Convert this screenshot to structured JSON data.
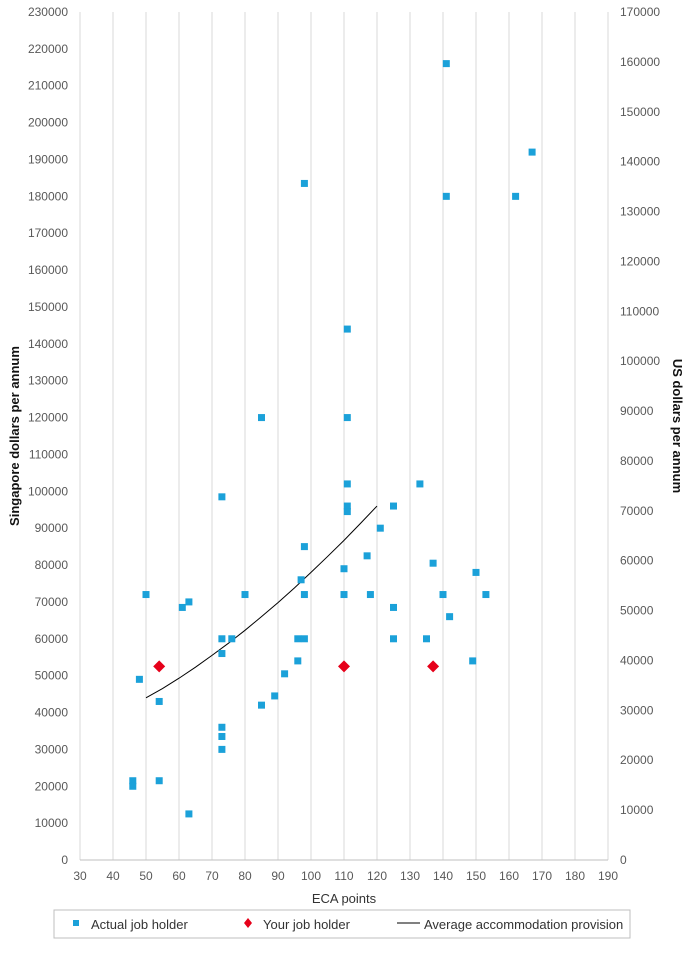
{
  "chart_data": {
    "type": "scatter",
    "xlabel": "ECA points",
    "ylabel": "Singapore dollars per annum",
    "y2label": "US dollars per annum",
    "xlim": [
      30,
      190
    ],
    "ylim": [
      0,
      230000
    ],
    "y2lim": [
      0,
      170000
    ],
    "x_ticks": [
      30,
      40,
      50,
      60,
      70,
      80,
      90,
      100,
      110,
      120,
      130,
      140,
      150,
      160,
      170,
      180,
      190
    ],
    "y_ticks": [
      0,
      10000,
      20000,
      30000,
      40000,
      50000,
      60000,
      70000,
      80000,
      90000,
      100000,
      110000,
      120000,
      130000,
      140000,
      150000,
      160000,
      170000,
      180000,
      190000,
      200000,
      210000,
      220000,
      230000
    ],
    "y2_ticks": [
      0,
      10000,
      20000,
      30000,
      40000,
      50000,
      60000,
      70000,
      80000,
      90000,
      100000,
      110000,
      120000,
      130000,
      140000,
      150000,
      160000,
      170000
    ],
    "grid": "vertical",
    "legend_position": "bottom",
    "series": [
      {
        "name": "Actual job holder",
        "kind": "scatter",
        "marker": "square",
        "color": "#1ba1d9",
        "points": [
          [
            46,
            21500
          ],
          [
            46,
            20000
          ],
          [
            48,
            49000
          ],
          [
            50,
            72000
          ],
          [
            54,
            43000
          ],
          [
            54,
            21500
          ],
          [
            61,
            68500
          ],
          [
            63,
            70000
          ],
          [
            63,
            12500
          ],
          [
            73,
            98500
          ],
          [
            73,
            60000
          ],
          [
            73,
            56000
          ],
          [
            73,
            36000
          ],
          [
            73,
            33500
          ],
          [
            73,
            30000
          ],
          [
            76,
            60000
          ],
          [
            80,
            72000
          ],
          [
            85,
            120000
          ],
          [
            85,
            42000
          ],
          [
            89,
            44500
          ],
          [
            92,
            50500
          ],
          [
            96,
            54000
          ],
          [
            96,
            60000
          ],
          [
            97,
            76000
          ],
          [
            98,
            60000
          ],
          [
            98,
            72000
          ],
          [
            98,
            85000
          ],
          [
            98,
            183500
          ],
          [
            110,
            79000
          ],
          [
            110,
            72000
          ],
          [
            111,
            144000
          ],
          [
            111,
            120000
          ],
          [
            111,
            102000
          ],
          [
            111,
            96000
          ],
          [
            111,
            94500
          ],
          [
            117,
            82500
          ],
          [
            118,
            72000
          ],
          [
            121,
            90000
          ],
          [
            125,
            96000
          ],
          [
            125,
            68500
          ],
          [
            125,
            60000
          ],
          [
            133,
            102000
          ],
          [
            135,
            60000
          ],
          [
            137,
            80500
          ],
          [
            140,
            72000
          ],
          [
            141,
            216000
          ],
          [
            141,
            180000
          ],
          [
            142,
            66000
          ],
          [
            149,
            54000
          ],
          [
            150,
            78000
          ],
          [
            153,
            72000
          ],
          [
            162,
            180000
          ],
          [
            167,
            192000
          ]
        ]
      },
      {
        "name": "Your job holder",
        "kind": "scatter",
        "marker": "diamond",
        "color": "#e6001a",
        "points": [
          [
            54,
            52500
          ],
          [
            110,
            52500
          ],
          [
            137,
            52500
          ]
        ]
      },
      {
        "name": "Average accommodation provision",
        "kind": "line",
        "color": "#000000",
        "points": [
          [
            50,
            44000
          ],
          [
            55,
            46500
          ],
          [
            60,
            49300
          ],
          [
            65,
            52300
          ],
          [
            70,
            55500
          ],
          [
            75,
            58800
          ],
          [
            80,
            62300
          ],
          [
            85,
            66000
          ],
          [
            90,
            69800
          ],
          [
            95,
            73800
          ],
          [
            100,
            78000
          ],
          [
            105,
            82300
          ],
          [
            110,
            86700
          ],
          [
            115,
            91300
          ],
          [
            120,
            96000
          ]
        ]
      }
    ]
  }
}
